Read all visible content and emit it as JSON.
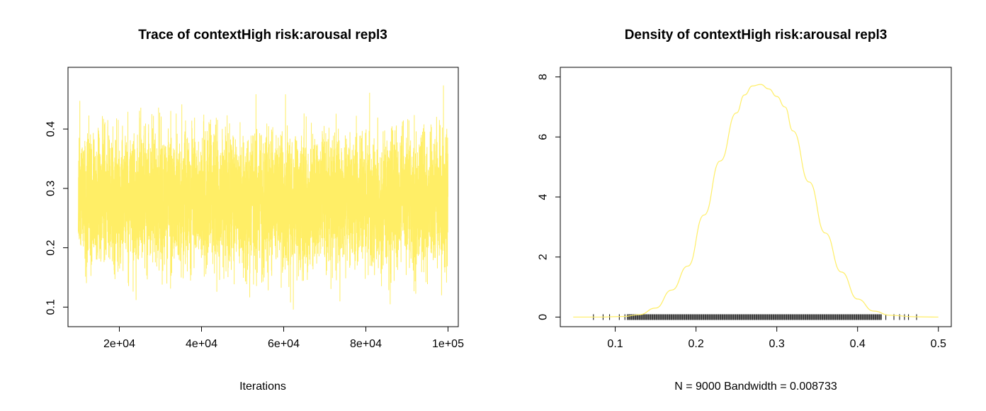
{
  "chart_data": [
    {
      "type": "line",
      "title": "Trace of contextHigh risk:arousal repl3",
      "xlabel": "Iterations",
      "ylabel": "",
      "xlim": [
        7500,
        102500
      ],
      "ylim": [
        0.067,
        0.504
      ],
      "xticks": [
        20000,
        40000,
        60000,
        80000,
        100000
      ],
      "xtick_labels": [
        "2e+04",
        "4e+04",
        "6e+04",
        "8e+04",
        "1e+05"
      ],
      "yticks": [
        0.1,
        0.2,
        0.3,
        0.4
      ],
      "ytick_labels": [
        "0.1",
        "0.2",
        "0.3",
        "0.4"
      ],
      "grid": false,
      "legend": "none",
      "line_color": "#FFEE66",
      "series": [
        {
          "x_start": 10000,
          "x_end": 100000,
          "n": 9000,
          "mean": 0.28,
          "sd": 0.052,
          "min": 0.075,
          "max": 0.475
        }
      ]
    },
    {
      "type": "line",
      "title": "Density of contextHigh risk:arousal repl3",
      "xlabel": "N = 9000   Bandwidth = 0.008733",
      "ylabel": "",
      "xlim": [
        0.032,
        0.516
      ],
      "ylim": [
        -0.32,
        8.32
      ],
      "xticks": [
        0.1,
        0.2,
        0.3,
        0.4,
        0.5
      ],
      "xtick_labels": [
        "0.1",
        "0.2",
        "0.3",
        "0.4",
        "0.5"
      ],
      "yticks": [
        0,
        2,
        4,
        6,
        8
      ],
      "ytick_labels": [
        "0",
        "2",
        "4",
        "6",
        "8"
      ],
      "grid": false,
      "legend": "none",
      "line_color": "#FFEE66",
      "rug_color": "#000000",
      "series": [
        {
          "x": [
            0.048,
            0.08,
            0.11,
            0.13,
            0.15,
            0.17,
            0.19,
            0.21,
            0.23,
            0.25,
            0.26,
            0.27,
            0.28,
            0.29,
            0.3,
            0.31,
            0.32,
            0.34,
            0.36,
            0.38,
            0.4,
            0.42,
            0.44,
            0.47,
            0.5
          ],
          "y": [
            0.0,
            0.0,
            0.02,
            0.08,
            0.3,
            0.9,
            1.7,
            3.4,
            5.2,
            6.8,
            7.4,
            7.7,
            7.75,
            7.6,
            7.35,
            7.0,
            6.2,
            4.5,
            2.8,
            1.5,
            0.6,
            0.2,
            0.06,
            0.01,
            0.0
          ]
        }
      ],
      "rug": {
        "n": 9000,
        "dense_range": [
          0.115,
          0.43
        ],
        "sparse_points": [
          0.073,
          0.085,
          0.093,
          0.105,
          0.112,
          0.435,
          0.445,
          0.452,
          0.458,
          0.463,
          0.473
        ]
      }
    }
  ]
}
